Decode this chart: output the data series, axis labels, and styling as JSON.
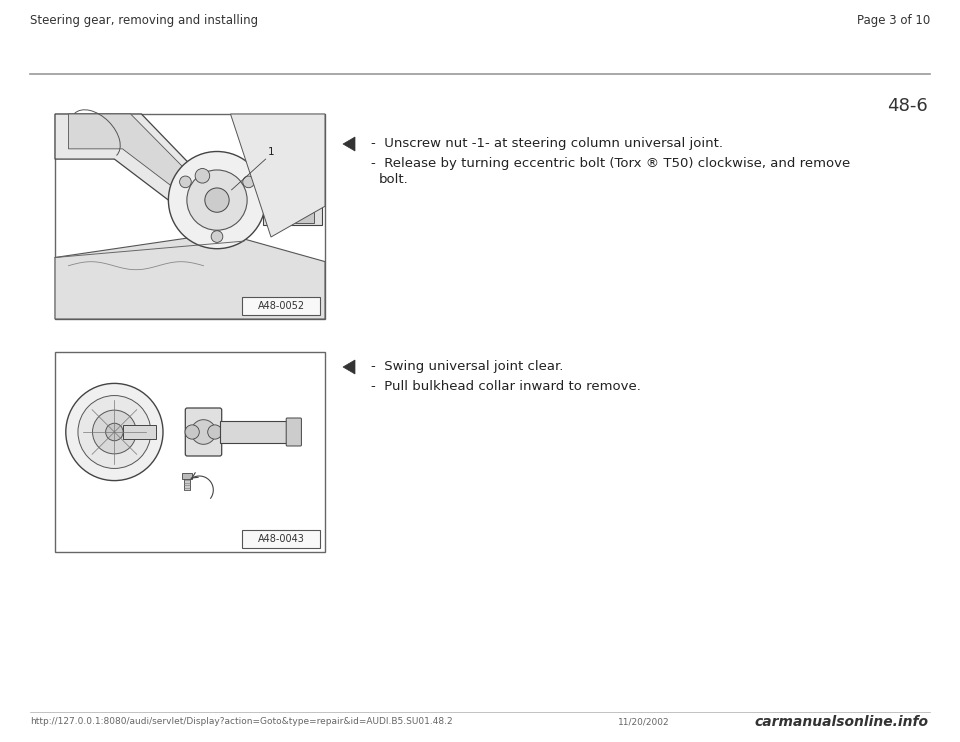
{
  "page_bg": "#ffffff",
  "header_left": "Steering gear, removing and installing",
  "header_right": "Page 3 of 10",
  "section_number": "48-6",
  "figure1_label": "A48-0052",
  "figure2_label": "A48-0043",
  "instructions_group1_line1": "-  Unscrew nut -1- at steering column universal joint.",
  "instructions_group1_line2a": "-  Release by turning eccentric bolt (Torx ® T50) clockwise, and remove",
  "instructions_group1_line2b": "   bolt.",
  "instructions_group2_line1": "-  Swing universal joint clear.",
  "instructions_group2_line2": "-  Pull bulkhead collar inward to remove.",
  "footer_url": "http://127.0.0.1:8080/audi/servlet/Display?action=Goto&type=repair&id=AUDI.B5.SU01.48.2",
  "footer_date": "11/20/2002",
  "footer_logo": "carmanualsonline.info",
  "header_font_size": 8.5,
  "body_font_size": 9.5,
  "section_font_size": 13
}
